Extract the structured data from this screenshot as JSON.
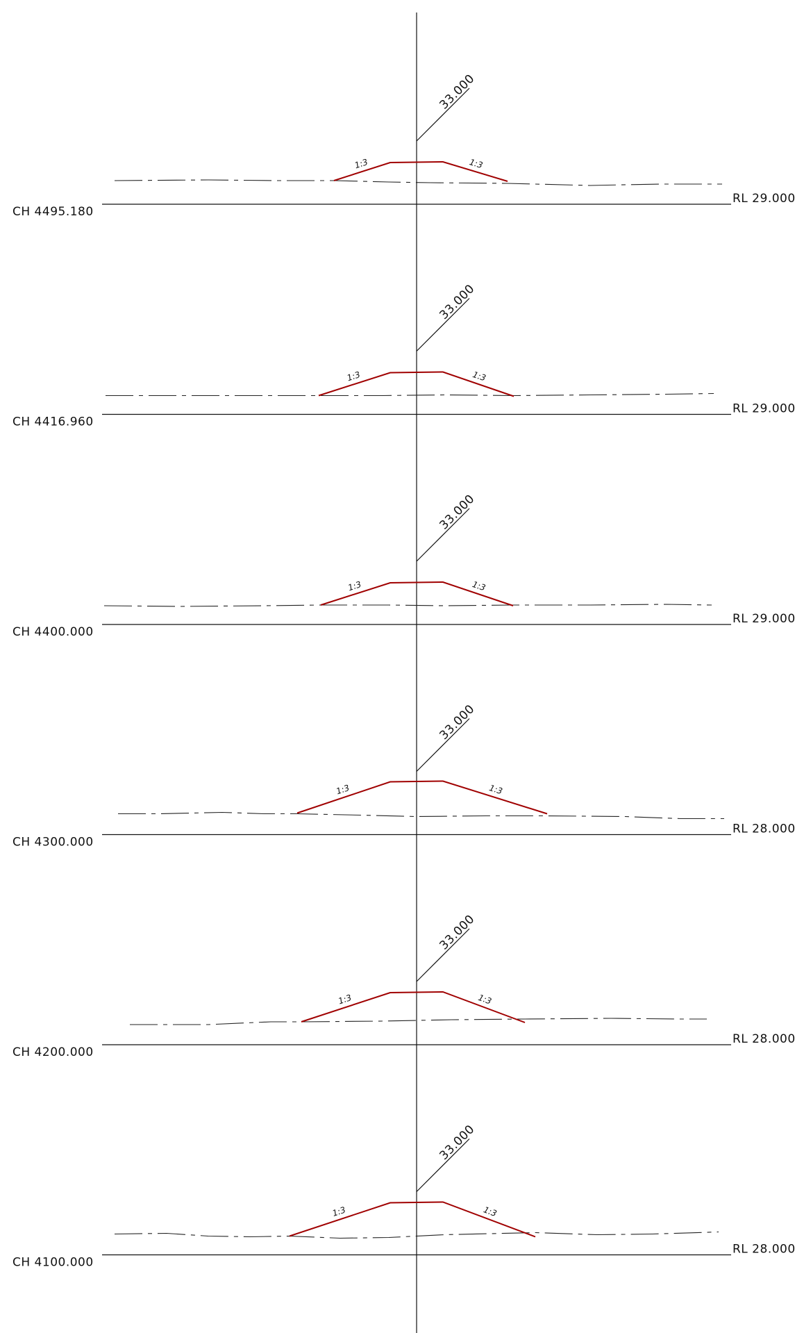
{
  "colors": {
    "embankment": "#a00000",
    "line": "#111111"
  },
  "sections": [
    {
      "chainage": "CH 4495.180",
      "datum": "RL 29.000",
      "level": "33.000",
      "slope_left": "1:3",
      "slope_right": "1:3"
    },
    {
      "chainage": "CH 4416.960",
      "datum": "RL 29.000",
      "level": "33.000",
      "slope_left": "1:3",
      "slope_right": "1:3"
    },
    {
      "chainage": "CH 4400.000",
      "datum": "RL 29.000",
      "level": "33.000",
      "slope_left": "1:3",
      "slope_right": "1:3"
    },
    {
      "chainage": "CH 4300.000",
      "datum": "RL 28.000",
      "level": "33.000",
      "slope_left": "1:3",
      "slope_right": "1:3"
    },
    {
      "chainage": "CH 4200.000",
      "datum": "RL 28.000",
      "level": "33.000",
      "slope_left": "1:3",
      "slope_right": "1:3"
    },
    {
      "chainage": "CH 4100.000",
      "datum": "RL 28.000",
      "level": "33.000",
      "slope_left": "1:3",
      "slope_right": "1:3"
    }
  ]
}
